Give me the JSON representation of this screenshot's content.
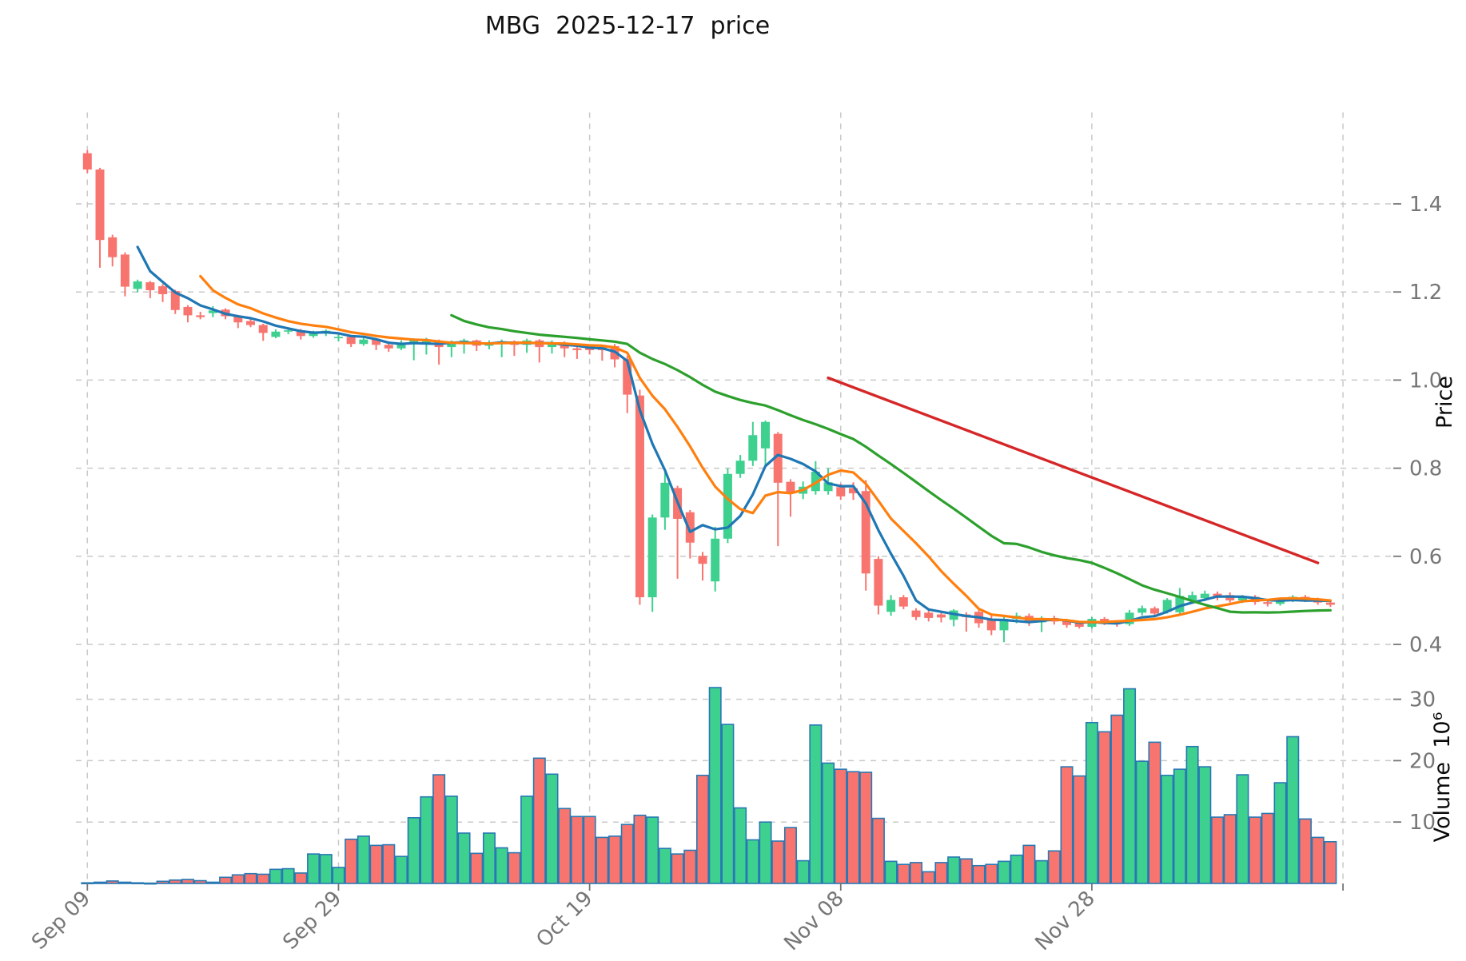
{
  "title": "MBG  2025-12-17  price",
  "colors": {
    "up": "#3ed08f",
    "down": "#f8756f",
    "volume_edge": "#2878b4",
    "ma_short": "#1f77b4",
    "ma_mid": "#ff7f0e",
    "ma_long": "#2ca02c",
    "trendline": "#d62728",
    "grid": "#c9c9c9",
    "tick_text": "#767676",
    "background": "#ffffff"
  },
  "chart_data": {
    "type": "candlestick+volume",
    "title": "MBG  2025-12-17  price",
    "symbol": "MBG",
    "as_of_date": "2025-12-17",
    "legend_position": "none",
    "grid": "dashed",
    "price_axis": {
      "label": "Price",
      "ticks": [
        "1.4",
        "1.2",
        "1.0",
        "0.8",
        "0.6",
        "0.4"
      ],
      "tick_values": [
        1.4,
        1.2,
        1.0,
        0.8,
        0.6,
        0.4
      ],
      "ylim": [
        0.353,
        1.607
      ]
    },
    "volume_axis": {
      "label": "Volume  10⁶",
      "ticks": [
        "30",
        "20",
        "10"
      ],
      "tick_values": [
        30,
        20,
        10
      ],
      "ylim": [
        0,
        35.2
      ]
    },
    "x_axis": {
      "tick_labels": [
        "Sep 09",
        "Sep 29",
        "Oct 19",
        "Nov 08",
        "Nov 28"
      ],
      "tick_rows": [
        0,
        20,
        40,
        60,
        80
      ],
      "unlabeled_gridline_row": 100,
      "n_rows": 100
    },
    "moving_averages": [
      {
        "name": "ma-short",
        "window": 5,
        "color_key": "ma_short"
      },
      {
        "name": "ma-mid",
        "window": 10,
        "color_key": "ma_mid"
      },
      {
        "name": "ma-long",
        "window": 30,
        "color_key": "ma_long"
      }
    ],
    "trendline": {
      "start_row": 59,
      "start_price": 1.005,
      "end_row": 98,
      "end_price": 0.585,
      "color_key": "trendline"
    },
    "series": {
      "open": [
        1.515,
        1.478,
        1.324,
        1.285,
        1.207,
        1.222,
        1.213,
        1.202,
        1.166,
        1.147,
        1.152,
        1.16,
        1.145,
        1.134,
        1.125,
        1.098,
        1.11,
        1.113,
        1.1,
        1.108,
        1.095,
        1.098,
        1.082,
        1.092,
        1.08,
        1.072,
        1.085,
        1.082,
        1.088,
        1.075,
        1.086,
        1.09,
        1.078,
        1.086,
        1.088,
        1.08,
        1.09,
        1.075,
        1.085,
        1.072,
        1.076,
        1.075,
        1.077,
        1.048,
        0.965,
        0.507,
        0.688,
        0.755,
        0.7,
        0.601,
        0.543,
        0.64,
        0.787,
        0.817,
        0.845,
        0.878,
        0.769,
        0.742,
        0.748,
        0.748,
        0.757,
        0.755,
        0.748,
        0.594,
        0.474,
        0.507,
        0.477,
        0.472,
        0.468,
        0.456,
        0.468,
        0.474,
        0.458,
        0.432,
        0.458,
        0.465,
        0.45,
        0.46,
        0.452,
        0.448,
        0.44,
        0.458,
        0.45,
        0.446,
        0.472,
        0.482,
        0.474,
        0.473,
        0.5,
        0.505,
        0.515,
        0.512,
        0.5,
        0.508,
        0.496,
        0.492,
        0.5,
        0.508,
        0.502,
        0.495
      ],
      "high": [
        1.522,
        1.482,
        1.33,
        1.29,
        1.228,
        1.225,
        1.218,
        1.205,
        1.17,
        1.155,
        1.168,
        1.163,
        1.148,
        1.138,
        1.128,
        1.115,
        1.118,
        1.116,
        1.112,
        1.115,
        1.105,
        1.102,
        1.098,
        1.095,
        1.088,
        1.09,
        1.095,
        1.096,
        1.092,
        1.09,
        1.094,
        1.092,
        1.09,
        1.092,
        1.09,
        1.094,
        1.093,
        1.09,
        1.088,
        1.082,
        1.08,
        1.08,
        1.082,
        1.055,
        0.978,
        0.695,
        0.79,
        0.76,
        0.705,
        0.61,
        0.667,
        0.8,
        0.83,
        0.905,
        0.908,
        0.882,
        0.775,
        0.77,
        0.816,
        0.8,
        0.765,
        0.768,
        0.773,
        0.6,
        0.512,
        0.512,
        0.482,
        0.478,
        0.472,
        0.48,
        0.473,
        0.483,
        0.468,
        0.465,
        0.472,
        0.47,
        0.464,
        0.465,
        0.458,
        0.452,
        0.462,
        0.462,
        0.455,
        0.478,
        0.488,
        0.486,
        0.505,
        0.528,
        0.52,
        0.522,
        0.52,
        0.518,
        0.512,
        0.512,
        0.503,
        0.505,
        0.512,
        0.512,
        0.506,
        0.5
      ],
      "low": [
        1.47,
        1.255,
        1.258,
        1.19,
        1.199,
        1.186,
        1.177,
        1.15,
        1.131,
        1.138,
        1.143,
        1.138,
        1.118,
        1.12,
        1.089,
        1.095,
        1.104,
        1.092,
        1.096,
        1.1,
        1.088,
        1.075,
        1.078,
        1.068,
        1.064,
        1.068,
        1.045,
        1.058,
        1.035,
        1.052,
        1.06,
        1.066,
        1.07,
        1.052,
        1.055,
        1.062,
        1.04,
        1.06,
        1.052,
        1.048,
        1.058,
        1.044,
        1.029,
        0.925,
        0.49,
        0.474,
        0.66,
        0.549,
        0.595,
        0.545,
        0.52,
        0.63,
        0.778,
        0.805,
        0.8,
        0.623,
        0.69,
        0.73,
        0.74,
        0.74,
        0.728,
        0.728,
        0.522,
        0.468,
        0.465,
        0.48,
        0.455,
        0.452,
        0.45,
        0.441,
        0.429,
        0.438,
        0.421,
        0.405,
        0.448,
        0.442,
        0.428,
        0.445,
        0.438,
        0.436,
        0.436,
        0.444,
        0.44,
        0.442,
        0.466,
        0.462,
        0.47,
        0.47,
        0.495,
        0.498,
        0.5,
        0.495,
        0.494,
        0.49,
        0.486,
        0.488,
        0.496,
        0.496,
        0.49,
        0.485
      ],
      "close": [
        1.478,
        1.318,
        1.279,
        1.212,
        1.224,
        1.204,
        1.195,
        1.159,
        1.147,
        1.143,
        1.158,
        1.145,
        1.131,
        1.125,
        1.107,
        1.11,
        1.113,
        1.1,
        1.108,
        1.112,
        1.098,
        1.082,
        1.092,
        1.08,
        1.072,
        1.085,
        1.09,
        1.088,
        1.075,
        1.086,
        1.09,
        1.078,
        1.086,
        1.088,
        1.08,
        1.09,
        1.075,
        1.085,
        1.072,
        1.068,
        1.068,
        1.068,
        1.047,
        0.967,
        0.507,
        0.688,
        0.767,
        0.685,
        0.631,
        0.583,
        0.64,
        0.787,
        0.817,
        0.875,
        0.905,
        0.767,
        0.742,
        0.758,
        0.792,
        0.768,
        0.736,
        0.743,
        0.561,
        0.488,
        0.501,
        0.486,
        0.462,
        0.46,
        0.461,
        0.477,
        0.462,
        0.448,
        0.432,
        0.458,
        0.465,
        0.45,
        0.46,
        0.452,
        0.444,
        0.44,
        0.458,
        0.45,
        0.446,
        0.472,
        0.482,
        0.47,
        0.501,
        0.51,
        0.512,
        0.515,
        0.506,
        0.5,
        0.508,
        0.496,
        0.492,
        0.5,
        0.508,
        0.502,
        0.495,
        0.49
      ],
      "volume_millions": [
        0.1,
        0.2,
        0.4,
        0.2,
        0.1,
        0.05,
        0.35,
        0.55,
        0.65,
        0.45,
        0.2,
        1.0,
        1.4,
        1.6,
        1.5,
        2.3,
        2.4,
        1.7,
        4.8,
        4.7,
        2.6,
        7.2,
        7.7,
        6.2,
        6.3,
        4.4,
        10.7,
        14.1,
        17.7,
        14.2,
        8.2,
        4.9,
        8.2,
        5.8,
        5.0,
        14.2,
        20.4,
        17.8,
        12.2,
        10.9,
        10.9,
        7.5,
        7.7,
        9.6,
        11.1,
        10.8,
        5.7,
        4.8,
        5.4,
        17.6,
        31.9,
        25.9,
        12.3,
        7.1,
        10.0,
        6.9,
        9.1,
        3.7,
        25.8,
        19.6,
        18.6,
        18.2,
        18.1,
        10.6,
        3.6,
        3.1,
        3.4,
        1.9,
        3.4,
        4.3,
        4.0,
        2.9,
        3.1,
        3.6,
        4.6,
        6.2,
        3.7,
        5.3,
        19.0,
        17.5,
        26.2,
        24.7,
        27.4,
        31.7,
        19.9,
        23.0,
        17.6,
        18.6,
        22.3,
        19.0,
        10.8,
        11.2,
        17.7,
        10.8,
        11.4,
        16.4,
        23.9,
        10.5,
        7.5,
        6.8
      ]
    }
  }
}
